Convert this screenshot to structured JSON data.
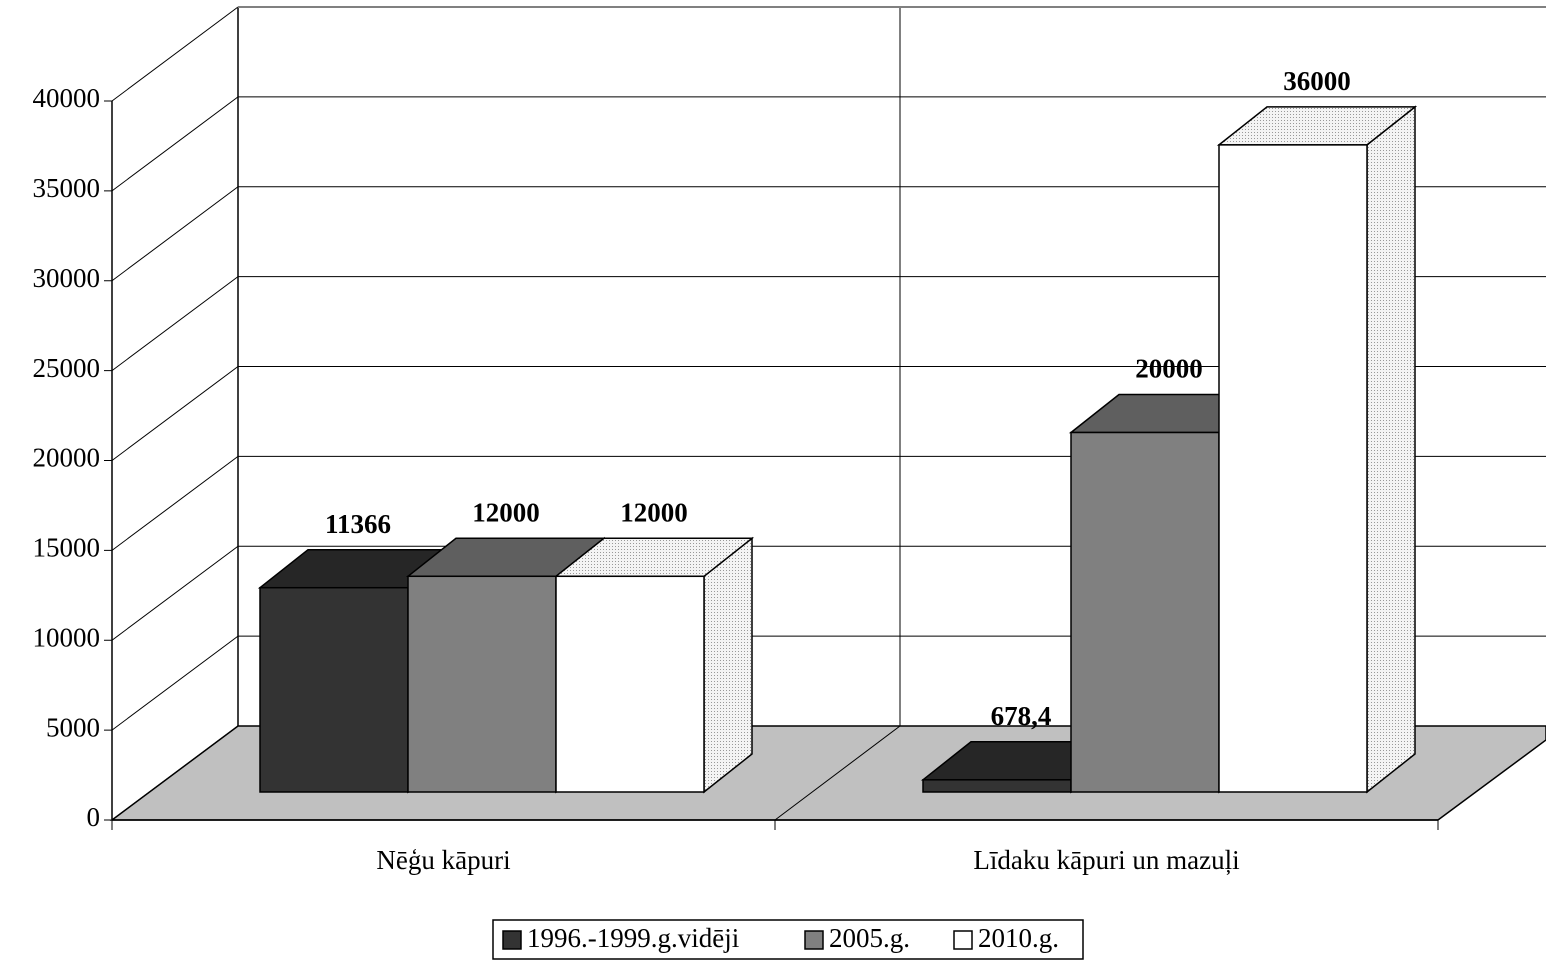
{
  "chart_data": {
    "type": "bar3d",
    "categories": [
      "Nēģu kāpuri",
      "Līdaku kāpuri un mazuļi"
    ],
    "series": [
      {
        "name": "1996.-1999.g.vidēji",
        "color": "#333333",
        "top": "#262626",
        "values": [
          11366,
          678.4
        ],
        "value_labels": [
          "11366",
          "678,4"
        ]
      },
      {
        "name": "2005.g.",
        "color": "#808080",
        "top": "#5f5f5f",
        "values": [
          12000,
          20000
        ],
        "value_labels": [
          "12000",
          "20000"
        ]
      },
      {
        "name": "2010.g.",
        "color": "#ffffff",
        "top": "#e8e8e8",
        "values": [
          12000,
          36000
        ],
        "value_labels": [
          "12000",
          "36000"
        ]
      }
    ],
    "ylim": [
      0,
      40000
    ],
    "yticks": [
      0,
      5000,
      10000,
      15000,
      20000,
      25000,
      30000,
      35000,
      40000
    ],
    "grid": true
  }
}
